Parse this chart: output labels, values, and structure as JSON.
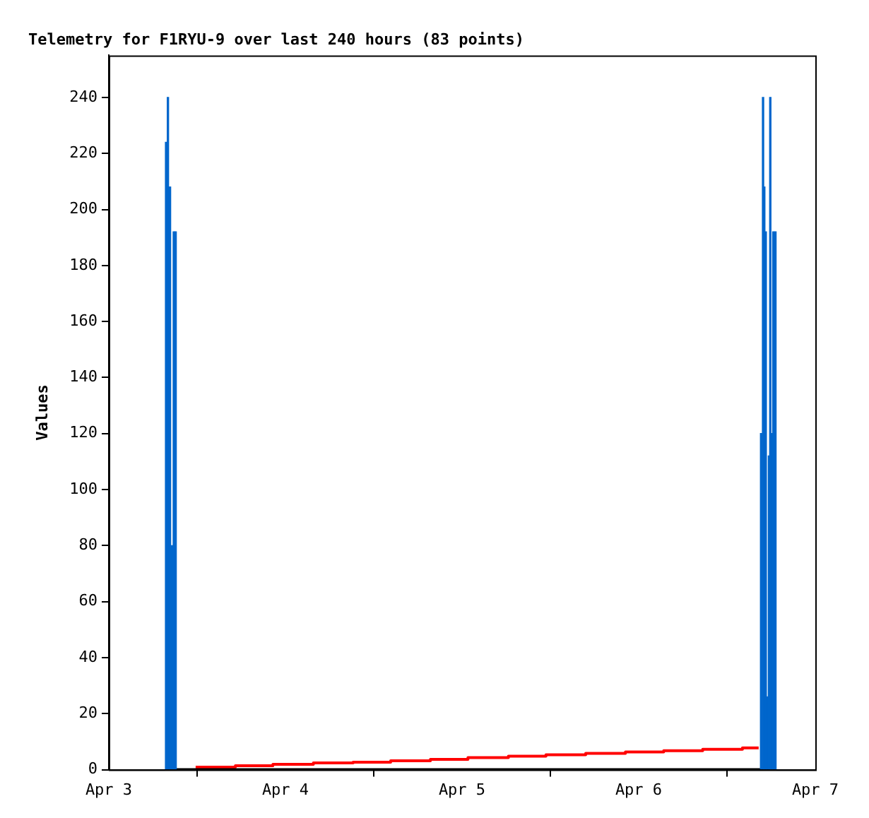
{
  "chart_data": {
    "type": "line",
    "title": "Telemetry for F1RYU-9 over last 240 hours (83 points)",
    "ylabel": "Values",
    "xlim": [
      "--04-03",
      "--04-07"
    ],
    "xticks": [
      {
        "value": "--04-03",
        "label": "Apr 3"
      },
      {
        "value": "--04-04",
        "label": "Apr 4"
      },
      {
        "value": "--04-05",
        "label": "Apr 5"
      },
      {
        "value": "--04-06",
        "label": "Apr 6"
      },
      {
        "value": "--04-07",
        "label": "Apr 7"
      }
    ],
    "ylim": [
      0,
      255
    ],
    "yticks": [
      0,
      20,
      40,
      60,
      80,
      100,
      120,
      140,
      160,
      180,
      200,
      220,
      240
    ],
    "grid": false,
    "legend": false,
    "marker": "none",
    "series": [
      {
        "type": "bar",
        "color": "#0066cc",
        "x": [
          "--04-03T07:47",
          "--04-03T08:02",
          "--04-03T08:19",
          "--04-03T08:36",
          "--04-03T08:50",
          "--04-03T09:05",
          "--04-06T16:38",
          "--04-06T16:54",
          "--04-06T17:04",
          "--04-06T17:16",
          "--04-06T17:27",
          "--04-06T17:42",
          "--04-06T17:53",
          "--04-06T18:05",
          "--04-06T18:18",
          "--04-06T18:35"
        ],
        "values": [
          224,
          240,
          208,
          80,
          192,
          192,
          120,
          240,
          208,
          192,
          26,
          112,
          240,
          120,
          192,
          192
        ]
      },
      {
        "color": "#000000",
        "x": [
          "--04-03T07:47",
          "--04-06T18:35"
        ],
        "values": [
          0,
          0
        ]
      },
      {
        "type": "step",
        "color": "#ff0000",
        "x": [
          "--04-03T11:48",
          "--04-03T17:12",
          "--04-03T22:18",
          "--04-04T03:48",
          "--04-04T09:12",
          "--04-04T14:18",
          "--04-04T19:42",
          "--04-05T00:48",
          "--04-05T06:18",
          "--04-05T11:24",
          "--04-05T16:48",
          "--04-05T22:12",
          "--04-06T03:24",
          "--04-06T08:42",
          "--04-06T14:06",
          "--04-06T16:18"
        ],
        "values": [
          0.9,
          1.4,
          1.9,
          2.4,
          2.7,
          3.2,
          3.7,
          4.3,
          4.8,
          5.3,
          5.8,
          6.3,
          6.8,
          7.3,
          7.8,
          7.8
        ]
      }
    ]
  }
}
